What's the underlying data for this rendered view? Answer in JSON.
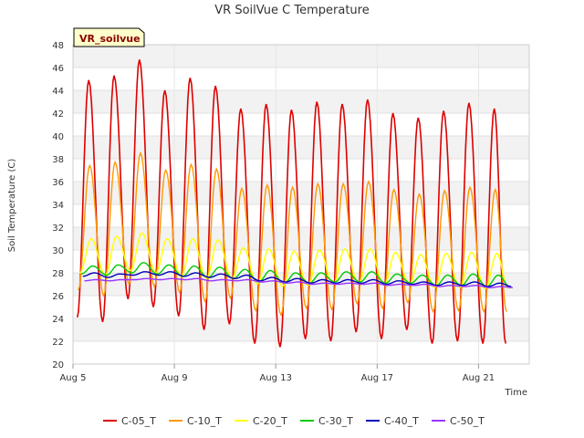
{
  "chart_data": {
    "type": "line",
    "title": "VR SoilVue C Temperature",
    "xlabel": "Time",
    "ylabel": "Soil Temperature (C)",
    "site_label": "VR_soilvue",
    "x_unit": "days since Aug 5",
    "xlim": [
      0,
      18
    ],
    "ylim": [
      20,
      48
    ],
    "y_ticks": [
      20,
      22,
      24,
      26,
      28,
      30,
      32,
      34,
      36,
      38,
      40,
      42,
      44,
      46,
      48
    ],
    "x_ticks": [
      {
        "value": 0,
        "label": "Aug 5"
      },
      {
        "value": 4,
        "label": "Aug 9"
      },
      {
        "value": 8,
        "label": "Aug 13"
      },
      {
        "value": 12,
        "label": "Aug 17"
      },
      {
        "value": 16,
        "label": "Aug 21"
      }
    ],
    "grid": true,
    "legend_position": "bottom",
    "series": [
      {
        "name": "C-05_T",
        "color": "#dd0000",
        "daily_max": [
          44.9,
          45.3,
          46.7,
          44.0,
          45.1,
          44.4,
          42.4,
          42.8,
          42.3,
          43.0,
          42.8,
          43.2,
          42.0,
          41.6,
          42.2,
          42.9,
          42.4
        ],
        "daily_min": [
          24.1,
          23.7,
          25.7,
          25.0,
          24.2,
          23.0,
          23.5,
          21.8,
          21.5,
          22.2,
          22.0,
          22.8,
          22.2,
          23.0,
          21.8,
          22.0,
          21.8
        ]
      },
      {
        "name": "C-10_T",
        "color": "#ff9900",
        "daily_max": [
          37.4,
          37.7,
          38.5,
          37.0,
          37.5,
          37.1,
          35.4,
          35.7,
          35.5,
          35.8,
          35.8,
          36.0,
          35.3,
          34.9,
          35.2,
          35.5,
          35.3
        ],
        "daily_min": [
          26.5,
          26.0,
          27.0,
          26.8,
          26.3,
          25.5,
          25.8,
          24.7,
          24.3,
          24.9,
          24.8,
          25.3,
          24.9,
          25.4,
          24.6,
          24.7,
          24.6
        ]
      },
      {
        "name": "C-20_T",
        "color": "#ffff00",
        "daily_max": [
          31.0,
          31.2,
          31.5,
          31.0,
          31.0,
          30.9,
          30.2,
          30.1,
          29.9,
          30.0,
          30.1,
          30.1,
          29.8,
          29.6,
          29.7,
          29.8,
          29.7
        ],
        "daily_min": [
          28.0,
          27.8,
          28.2,
          28.0,
          27.7,
          27.5,
          27.5,
          27.0,
          26.8,
          26.9,
          27.0,
          27.1,
          26.9,
          27.0,
          26.7,
          26.7,
          26.6
        ]
      },
      {
        "name": "C-30_T",
        "color": "#00cc00",
        "daily_max": [
          28.6,
          28.7,
          28.9,
          28.7,
          28.6,
          28.5,
          28.3,
          28.2,
          28.0,
          28.0,
          28.1,
          28.1,
          27.9,
          27.8,
          27.8,
          27.9,
          27.8
        ],
        "daily_min": [
          27.9,
          27.8,
          28.0,
          27.9,
          27.7,
          27.6,
          27.5,
          27.2,
          27.1,
          27.1,
          27.2,
          27.2,
          27.1,
          27.1,
          26.9,
          26.9,
          26.8
        ]
      },
      {
        "name": "C-40_T",
        "color": "#0000bb",
        "daily_max": [
          28.0,
          27.9,
          28.1,
          28.1,
          28.0,
          27.9,
          27.8,
          27.6,
          27.5,
          27.4,
          27.4,
          27.4,
          27.3,
          27.2,
          27.2,
          27.2,
          27.1
        ],
        "daily_min": [
          27.7,
          27.6,
          27.8,
          27.8,
          27.7,
          27.6,
          27.5,
          27.3,
          27.2,
          27.1,
          27.1,
          27.1,
          27.0,
          27.0,
          26.9,
          26.9,
          26.8
        ]
      },
      {
        "name": "C-50_T",
        "color": "#9933ff",
        "daily_max": [
          27.4,
          27.4,
          27.5,
          27.5,
          27.5,
          27.4,
          27.4,
          27.3,
          27.2,
          27.1,
          27.1,
          27.1,
          27.0,
          27.0,
          26.9,
          26.9,
          26.8
        ],
        "daily_min": [
          27.3,
          27.3,
          27.4,
          27.4,
          27.4,
          27.3,
          27.3,
          27.2,
          27.1,
          27.0,
          27.0,
          27.0,
          26.9,
          26.9,
          26.8,
          26.8,
          26.7
        ]
      }
    ]
  }
}
